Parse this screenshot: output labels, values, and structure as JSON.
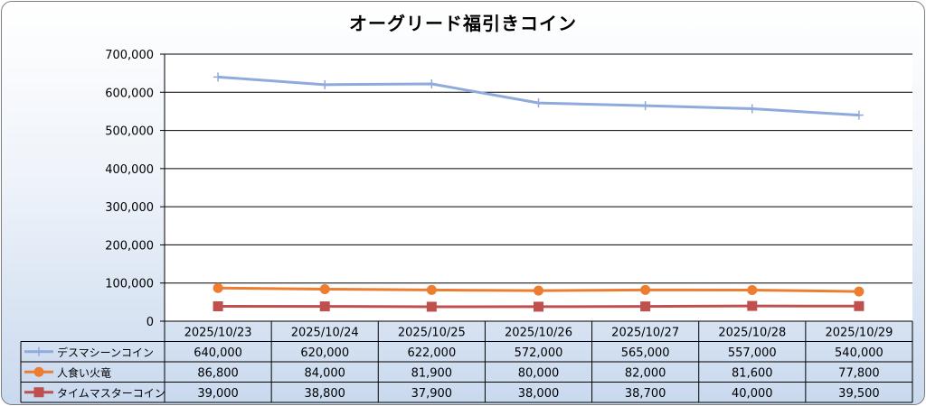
{
  "chart_data": {
    "type": "line",
    "title": "オーグリード福引きコイン",
    "categories": [
      "2025/10/23",
      "2025/10/24",
      "2025/10/25",
      "2025/10/26",
      "2025/10/27",
      "2025/10/28",
      "2025/10/29"
    ],
    "ylim": [
      0,
      700000
    ],
    "yticks": [
      "0",
      "100,000",
      "200,000",
      "300,000",
      "400,000",
      "500,000",
      "600,000",
      "700,000"
    ],
    "grid": true,
    "legend_placement": "data-table",
    "series": [
      {
        "name": "デスマシーンコイン",
        "values": [
          640000,
          620000,
          622000,
          572000,
          565000,
          557000,
          540000
        ],
        "labels": [
          "640,000",
          "620,000",
          "622,000",
          "572,000",
          "565,000",
          "557,000",
          "540,000"
        ],
        "color": "#8faadc",
        "marker": "plus"
      },
      {
        "name": "人食い火竜",
        "values": [
          86800,
          84000,
          81900,
          80000,
          82000,
          81600,
          77800
        ],
        "labels": [
          "86,800",
          "84,000",
          "81,900",
          "80,000",
          "82,000",
          "81,600",
          "77,800"
        ],
        "color": "#ed7d31",
        "marker": "circle"
      },
      {
        "name": "タイムマスターコイン",
        "values": [
          39000,
          38800,
          37900,
          38000,
          38700,
          40000,
          39500
        ],
        "labels": [
          "39,000",
          "38,800",
          "37,900",
          "38,000",
          "38,700",
          "40,000",
          "39,500"
        ],
        "color": "#c0504d",
        "marker": "square"
      }
    ]
  }
}
